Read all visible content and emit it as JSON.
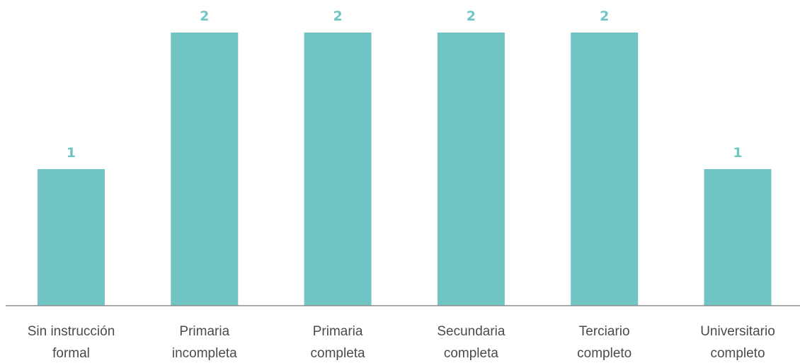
{
  "chart_data": {
    "type": "bar",
    "categories": [
      [
        "Sin instrucción",
        "formal"
      ],
      [
        "Primaria",
        "incompleta"
      ],
      [
        "Primaria",
        "completa"
      ],
      [
        "Secundaria",
        "completa"
      ],
      [
        "Terciario",
        "completo"
      ],
      [
        "Universitario",
        "completo"
      ]
    ],
    "values": [
      1,
      2,
      2,
      2,
      2,
      1
    ],
    "title": "",
    "xlabel": "",
    "ylabel": "",
    "ylim": [
      0,
      2
    ],
    "grid": false,
    "legend": "none",
    "data_labels": true
  },
  "colors": {
    "bar": "#70c5c4",
    "data_label": "#70c5c4",
    "axis": "#8c8c8c",
    "tick_text": "#4a4a4a"
  }
}
